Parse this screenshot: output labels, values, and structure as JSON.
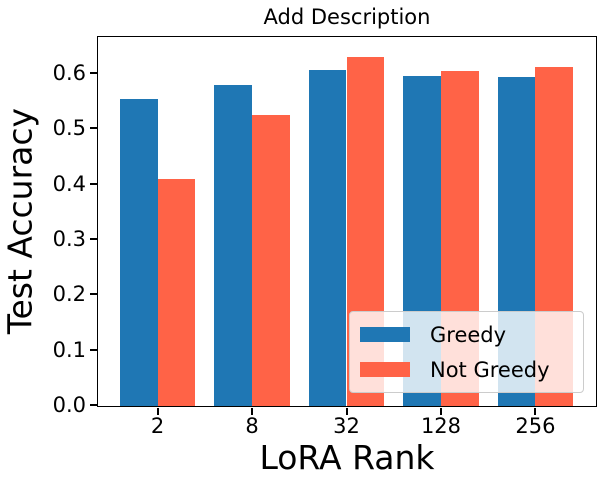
{
  "chart_data": {
    "type": "bar",
    "title": "Add Description",
    "xlabel": "LoRA Rank",
    "ylabel": "Test Accuracy",
    "categories": [
      "2",
      "8",
      "32",
      "128",
      "256"
    ],
    "series": [
      {
        "name": "Greedy",
        "color": "#1f77b4",
        "values": [
          0.555,
          0.58,
          0.608,
          0.597,
          0.595
        ]
      },
      {
        "name": "Not Greedy",
        "color": "#ff6347",
        "values": [
          0.41,
          0.525,
          0.63,
          0.606,
          0.613
        ]
      }
    ],
    "ylim": [
      0,
      0.665
    ],
    "ytick_labels": [
      "0.0",
      "0.1",
      "0.2",
      "0.3",
      "0.4",
      "0.5",
      "0.6"
    ],
    "legend": {
      "position": "lower right",
      "entries": [
        "Greedy",
        "Not Greedy"
      ]
    },
    "grid": false,
    "bar_width_fraction": 0.4,
    "axis_color": "#000000",
    "background_color": "#ffffff"
  }
}
